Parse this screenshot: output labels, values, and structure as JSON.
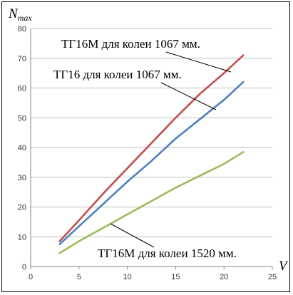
{
  "chart_data": {
    "type": "line",
    "xlim": [
      0,
      25
    ],
    "ylim": [
      0,
      80
    ],
    "x_ticks": [
      "0",
      "5",
      "10",
      "15",
      "20",
      "25"
    ],
    "y_ticks": [
      "0",
      "10",
      "20",
      "30",
      "40",
      "50",
      "60",
      "70",
      "80"
    ],
    "xlabel": "V",
    "ylabel_main": "N",
    "ylabel_sub": "max",
    "grid": true,
    "series": [
      {
        "name": "ТГ16М для колеи 1067 мм.",
        "color": "#c0504d",
        "x": [
          3,
          5,
          7.5,
          10,
          12.5,
          15,
          17.5,
          20,
          22
        ],
        "y": [
          8.5,
          15.5,
          24.5,
          33,
          41.5,
          50,
          58,
          65,
          71
        ]
      },
      {
        "name": "ТГ16 для колеи 1067 мм.",
        "color": "#4f81bd",
        "x": [
          3,
          5,
          7.5,
          10,
          12.5,
          15,
          17.5,
          20,
          22
        ],
        "y": [
          7.5,
          13.5,
          21,
          28.5,
          35.5,
          43,
          49.5,
          56,
          62
        ]
      },
      {
        "name": "ТГ16М для колеи 1520 мм.",
        "color": "#9bbb59",
        "x": [
          3,
          5,
          7.5,
          10,
          12.5,
          15,
          17.5,
          20,
          22
        ],
        "y": [
          4.5,
          8.5,
          13,
          17.5,
          22,
          26.5,
          30.5,
          34.5,
          38.5
        ]
      }
    ]
  }
}
